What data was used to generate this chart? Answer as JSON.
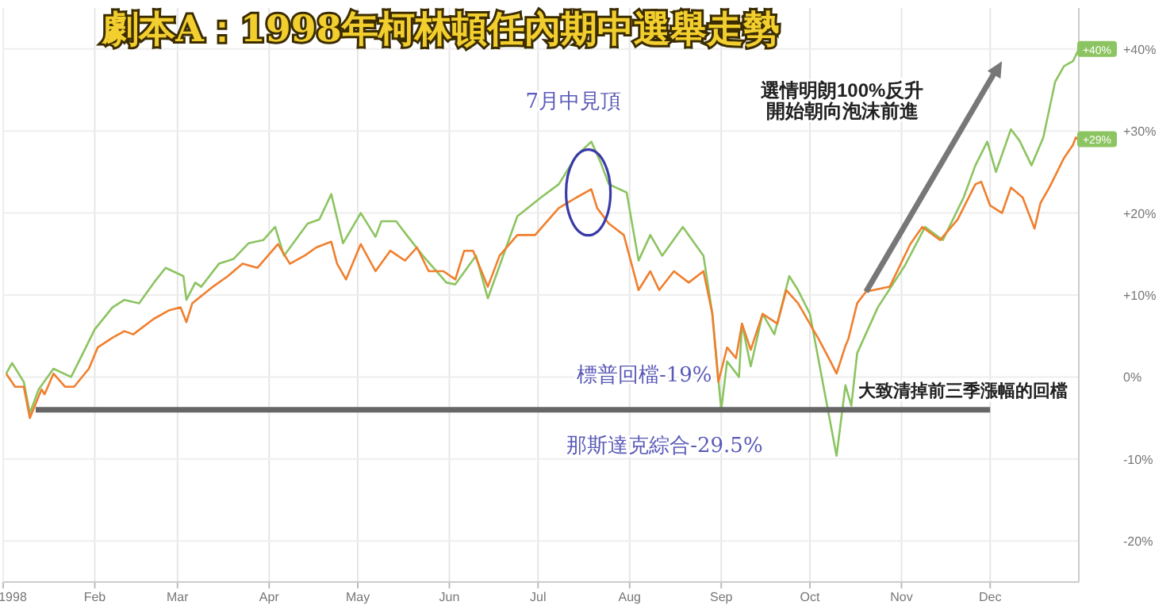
{
  "chart_data": {
    "type": "line",
    "title": "劇本A：1998年柯林頓任內期中選舉走勢",
    "xlim": [
      "1998-01-01",
      "1998-12-31"
    ],
    "xticks": [
      {
        "value": "1998-01-01",
        "label": "1998"
      },
      {
        "value": "1998-02-01",
        "label": "Feb"
      },
      {
        "value": "1998-03-01",
        "label": "Mar"
      },
      {
        "value": "1998-04-01",
        "label": "Apr"
      },
      {
        "value": "1998-05-01",
        "label": "May"
      },
      {
        "value": "1998-06-01",
        "label": "Jun"
      },
      {
        "value": "1998-07-01",
        "label": "Jul"
      },
      {
        "value": "1998-08-01",
        "label": "Aug"
      },
      {
        "value": "1998-09-01",
        "label": "Sep"
      },
      {
        "value": "1998-10-01",
        "label": "Oct"
      },
      {
        "value": "1998-11-01",
        "label": "Nov"
      },
      {
        "value": "1998-12-01",
        "label": "Dec"
      }
    ],
    "ylim": [
      -25,
      45
    ],
    "yticks": [
      {
        "value": -20,
        "label": "-20%"
      },
      {
        "value": -10,
        "label": "-10%"
      },
      {
        "value": 0,
        "label": "0%"
      },
      {
        "value": 10,
        "label": "+10%"
      },
      {
        "value": 20,
        "label": "+20%"
      },
      {
        "value": 30,
        "label": "+30%"
      },
      {
        "value": 40,
        "label": "+40%"
      }
    ],
    "grid": true,
    "series": [
      {
        "color": "#8cc461",
        "x": [
          "1998-01-02",
          "1998-01-04",
          "1998-01-08",
          "1998-01-10",
          "1998-01-13",
          "1998-01-18",
          "1998-01-24",
          "1998-01-28",
          "1998-02-01",
          "1998-02-07",
          "1998-02-11",
          "1998-02-16",
          "1998-02-21",
          "1998-02-25",
          "1998-03-03",
          "1998-03-04",
          "1998-03-07",
          "1998-03-09",
          "1998-03-15",
          "1998-03-20",
          "1998-03-25",
          "1998-03-30",
          "1998-04-03",
          "1998-04-06",
          "1998-04-14",
          "1998-04-18",
          "1998-04-22",
          "1998-04-26",
          "1998-05-02",
          "1998-05-07",
          "1998-05-09",
          "1998-05-14",
          "1998-05-18",
          "1998-05-23",
          "1998-05-31",
          "1998-06-03",
          "1998-06-10",
          "1998-06-14",
          "1998-06-24",
          "1998-07-02",
          "1998-07-08",
          "1998-07-14",
          "1998-07-19",
          "1998-07-22",
          "1998-07-25",
          "1998-07-31",
          "1998-08-04",
          "1998-08-08",
          "1998-08-12",
          "1998-08-19",
          "1998-08-26",
          "1998-08-29",
          "1998-09-01",
          "1998-09-03",
          "1998-09-07",
          "1998-09-08",
          "1998-09-11",
          "1998-09-15",
          "1998-09-19",
          "1998-09-24",
          "1998-09-27",
          "1998-10-01",
          "1998-10-06",
          "1998-10-10",
          "1998-10-13",
          "1998-10-15",
          "1998-10-17",
          "1998-10-24",
          "1998-11-02",
          "1998-11-09",
          "1998-11-15",
          "1998-11-22",
          "1998-11-26",
          "1998-11-30",
          "1998-12-03",
          "1998-12-08",
          "1998-12-11",
          "1998-12-15",
          "1998-12-19",
          "1998-12-23",
          "1998-12-26",
          "1998-12-29",
          "1998-12-31"
        ],
        "values": [
          0.4,
          1.7,
          -0.6,
          -4.4,
          -1.5,
          1,
          0,
          2.9,
          5.8,
          8.5,
          9.4,
          9,
          11.5,
          13.3,
          12.3,
          9.4,
          11.5,
          11,
          13.8,
          14.4,
          16.3,
          16.7,
          18.3,
          14.8,
          18.7,
          19.2,
          22.3,
          16.3,
          20,
          17.1,
          19,
          19,
          17.1,
          14.8,
          11.5,
          11.3,
          14.8,
          9.6,
          19.6,
          21.9,
          23.5,
          27,
          28.7,
          26.3,
          23.5,
          22.5,
          14.2,
          17.3,
          14.8,
          18.3,
          14.8,
          7.7,
          -4,
          1.9,
          0,
          6.5,
          1.3,
          7.7,
          5.2,
          12.3,
          10.6,
          7.7,
          -1.9,
          -9.6,
          -1,
          -3.5,
          2.9,
          8.5,
          13.5,
          18.3,
          16.7,
          21.9,
          25.8,
          28.7,
          25,
          30.2,
          28.8,
          25.8,
          29.2,
          36,
          37.9,
          38.5,
          40
        ]
      },
      {
        "color": "#f07f2e",
        "x": [
          "1998-01-02",
          "1998-01-05",
          "1998-01-08",
          "1998-01-10",
          "1998-01-14",
          "1998-01-15",
          "1998-01-18",
          "1998-01-22",
          "1998-01-25",
          "1998-01-30",
          "1998-02-02",
          "1998-02-07",
          "1998-02-11",
          "1998-02-14",
          "1998-02-21",
          "1998-02-26",
          "1998-03-02",
          "1998-03-04",
          "1998-03-06",
          "1998-03-13",
          "1998-03-18",
          "1998-03-23",
          "1998-03-28",
          "1998-04-04",
          "1998-04-08",
          "1998-04-13",
          "1998-04-17",
          "1998-04-22",
          "1998-04-24",
          "1998-04-27",
          "1998-05-02",
          "1998-05-07",
          "1998-05-12",
          "1998-05-17",
          "1998-05-21",
          "1998-05-25",
          "1998-05-30",
          "1998-06-03",
          "1998-06-06",
          "1998-06-09",
          "1998-06-14",
          "1998-06-18",
          "1998-06-24",
          "1998-06-30",
          "1998-07-08",
          "1998-07-14",
          "1998-07-19",
          "1998-07-21",
          "1998-07-25",
          "1998-07-30",
          "1998-08-04",
          "1998-08-08",
          "1998-08-11",
          "1998-08-16",
          "1998-08-21",
          "1998-08-26",
          "1998-08-29",
          "1998-08-31",
          "1998-09-03",
          "1998-09-06",
          "1998-09-08",
          "1998-09-11",
          "1998-09-15",
          "1998-09-20",
          "1998-09-23",
          "1998-09-27",
          "1998-10-04",
          "1998-10-08",
          "1998-10-10",
          "1998-10-13",
          "1998-10-14",
          "1998-10-17",
          "1998-10-20",
          "1998-10-28",
          "1998-11-04",
          "1998-11-08",
          "1998-11-14",
          "1998-11-20",
          "1998-11-26",
          "1998-11-28",
          "1998-12-01",
          "1998-12-05",
          "1998-12-08",
          "1998-12-12",
          "1998-12-16",
          "1998-12-18",
          "1998-12-21",
          "1998-12-26",
          "1998-12-29",
          "1998-12-30",
          "1998-12-31"
        ],
        "values": [
          0.4,
          -1.2,
          -1.2,
          -5,
          -1.5,
          -2.1,
          0.4,
          -1.2,
          -1.2,
          1,
          3.6,
          4.8,
          5.6,
          5.2,
          7.1,
          8.1,
          8.5,
          6.7,
          9,
          11,
          12.3,
          13.8,
          13.3,
          16.2,
          13.8,
          14.8,
          15.8,
          16.5,
          13.8,
          11.9,
          16.2,
          12.9,
          15.4,
          14.2,
          15.8,
          12.9,
          12.9,
          11.9,
          15.4,
          15.4,
          11,
          14.8,
          17.3,
          17.3,
          20.6,
          21.9,
          22.9,
          20.6,
          18.7,
          17.3,
          10.6,
          12.9,
          10.6,
          12.9,
          11.5,
          12.9,
          7.7,
          -0.6,
          3.6,
          2.3,
          6.5,
          3.3,
          7.7,
          6.5,
          10.6,
          9,
          4.6,
          1.9,
          0.4,
          3.8,
          4.6,
          9,
          10.4,
          11,
          16.2,
          18.3,
          16.7,
          19.2,
          23.5,
          23.8,
          20.9,
          20,
          23.1,
          21.9,
          18.1,
          21.2,
          23.1,
          26.7,
          28.3,
          29.2,
          29
        ]
      },
      {
        "color": "#666666",
        "x": [
          "1998-01-12",
          "1998-12-01"
        ],
        "values": [
          -4,
          -4
        ]
      }
    ],
    "annotations": [
      {
        "text": "+40%",
        "x": "1998-12-31",
        "y": 40
      },
      {
        "text": "+29%",
        "x": "1998-12-31",
        "y": 29
      },
      "7月中見頂",
      "標普回檔-19%",
      "那斯達克綜合-29.5%",
      "大致清掉前三季漲幅的回檔",
      "選情明朗100%反升",
      "開始朝向泡沫前進"
    ]
  }
}
